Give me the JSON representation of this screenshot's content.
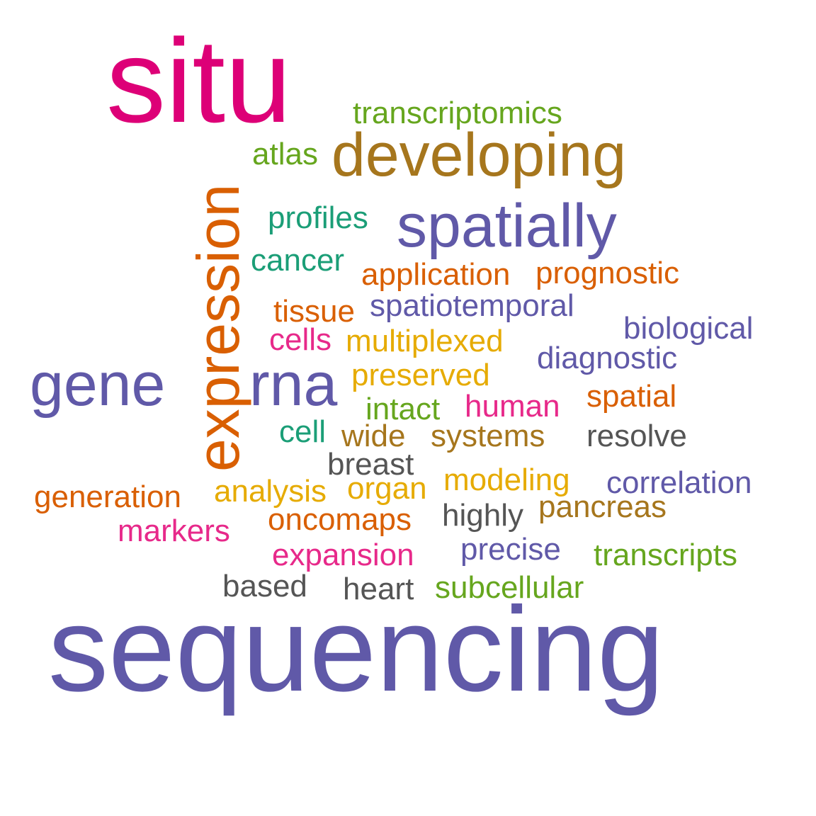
{
  "palette": {
    "pink": "#e7298a",
    "magenta": "#dd0077",
    "orange": "#d95f02",
    "brown": "#a6761d",
    "purple": "#6059a8",
    "teal": "#1b9e77",
    "green": "#66a61e",
    "gold": "#e6ab02",
    "gray": "#555555"
  },
  "words": [
    {
      "text": "situ",
      "color": "magenta"
    },
    {
      "text": "transcriptomics",
      "color": "green"
    },
    {
      "text": "atlas",
      "color": "green"
    },
    {
      "text": "developing",
      "color": "brown"
    },
    {
      "text": "expression",
      "color": "orange"
    },
    {
      "text": "profiles",
      "color": "teal"
    },
    {
      "text": "spatially",
      "color": "purple"
    },
    {
      "text": "cancer",
      "color": "teal"
    },
    {
      "text": "application",
      "color": "orange"
    },
    {
      "text": "prognostic",
      "color": "orange"
    },
    {
      "text": "tissue",
      "color": "orange"
    },
    {
      "text": "spatiotemporal",
      "color": "purple"
    },
    {
      "text": "biological",
      "color": "purple"
    },
    {
      "text": "cells",
      "color": "pink"
    },
    {
      "text": "multiplexed",
      "color": "gold"
    },
    {
      "text": "diagnostic",
      "color": "purple"
    },
    {
      "text": "gene",
      "color": "purple"
    },
    {
      "text": "rna",
      "color": "purple"
    },
    {
      "text": "preserved",
      "color": "gold"
    },
    {
      "text": "spatial",
      "color": "orange"
    },
    {
      "text": "intact",
      "color": "green"
    },
    {
      "text": "human",
      "color": "pink"
    },
    {
      "text": "cell",
      "color": "teal"
    },
    {
      "text": "wide",
      "color": "brown"
    },
    {
      "text": "systems",
      "color": "brown"
    },
    {
      "text": "resolve",
      "color": "gray"
    },
    {
      "text": "breast",
      "color": "gray"
    },
    {
      "text": "modeling",
      "color": "gold"
    },
    {
      "text": "generation",
      "color": "orange"
    },
    {
      "text": "analysis",
      "color": "gold"
    },
    {
      "text": "organ",
      "color": "gold"
    },
    {
      "text": "correlation",
      "color": "purple"
    },
    {
      "text": "highly",
      "color": "gray"
    },
    {
      "text": "pancreas",
      "color": "brown"
    },
    {
      "text": "markers",
      "color": "pink"
    },
    {
      "text": "oncomaps",
      "color": "orange"
    },
    {
      "text": "expansion",
      "color": "pink"
    },
    {
      "text": "precise",
      "color": "purple"
    },
    {
      "text": "transcripts",
      "color": "green"
    },
    {
      "text": "based",
      "color": "gray"
    },
    {
      "text": "heart",
      "color": "gray"
    },
    {
      "text": "subcellular",
      "color": "green"
    },
    {
      "text": "sequencing",
      "color": "purple"
    }
  ]
}
